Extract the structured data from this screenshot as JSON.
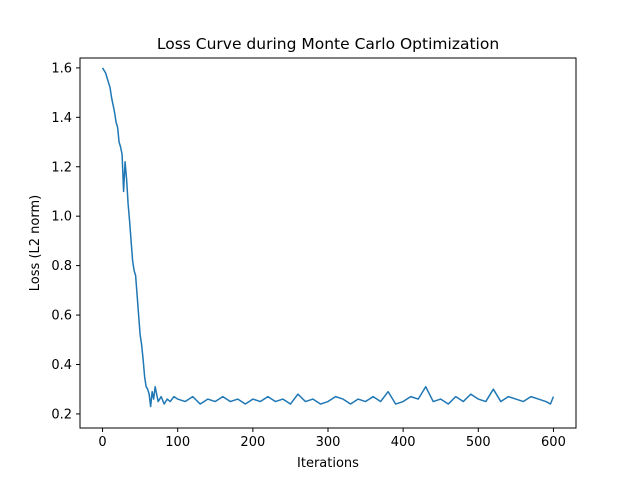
{
  "chart_data": {
    "type": "line",
    "title": "Loss Curve during Monte Carlo Optimization",
    "xlabel": "Iterations",
    "ylabel": "Loss (L2 norm)",
    "xlim": [
      -30,
      630
    ],
    "ylim": [
      0.143,
      1.64
    ],
    "xticks": [
      0,
      100,
      200,
      300,
      400,
      500,
      600
    ],
    "yticks": [
      0.2,
      0.4,
      0.6,
      0.8,
      1.0,
      1.2,
      1.4,
      1.6
    ],
    "grid": false,
    "series": [
      {
        "color": "#1f77b4",
        "x": [
          0,
          4,
          8,
          10,
          12,
          14,
          16,
          18,
          20,
          22,
          24,
          26,
          28,
          30,
          32,
          34,
          36,
          38,
          40,
          42,
          44,
          46,
          48,
          50,
          52,
          54,
          56,
          58,
          60,
          62,
          64,
          66,
          68,
          70,
          74,
          78,
          82,
          86,
          90,
          95,
          100,
          110,
          120,
          130,
          140,
          150,
          160,
          170,
          180,
          190,
          200,
          210,
          220,
          230,
          240,
          250,
          260,
          270,
          280,
          290,
          300,
          310,
          320,
          330,
          340,
          350,
          360,
          370,
          380,
          390,
          400,
          410,
          420,
          430,
          440,
          450,
          460,
          470,
          480,
          490,
          500,
          510,
          520,
          530,
          540,
          550,
          560,
          570,
          580,
          590,
          596,
          600
        ],
        "y": [
          1.6,
          1.58,
          1.54,
          1.52,
          1.48,
          1.45,
          1.42,
          1.38,
          1.36,
          1.3,
          1.28,
          1.25,
          1.1,
          1.22,
          1.15,
          1.05,
          0.98,
          0.9,
          0.82,
          0.78,
          0.76,
          0.68,
          0.6,
          0.52,
          0.48,
          0.42,
          0.35,
          0.31,
          0.3,
          0.28,
          0.23,
          0.29,
          0.26,
          0.31,
          0.25,
          0.27,
          0.24,
          0.26,
          0.25,
          0.27,
          0.26,
          0.25,
          0.27,
          0.24,
          0.26,
          0.25,
          0.27,
          0.25,
          0.26,
          0.24,
          0.26,
          0.25,
          0.27,
          0.25,
          0.26,
          0.24,
          0.28,
          0.25,
          0.26,
          0.24,
          0.25,
          0.27,
          0.26,
          0.24,
          0.26,
          0.25,
          0.27,
          0.25,
          0.29,
          0.24,
          0.25,
          0.27,
          0.26,
          0.31,
          0.25,
          0.26,
          0.24,
          0.27,
          0.25,
          0.28,
          0.26,
          0.25,
          0.3,
          0.25,
          0.27,
          0.26,
          0.25,
          0.27,
          0.26,
          0.25,
          0.24,
          0.27
        ]
      }
    ]
  }
}
